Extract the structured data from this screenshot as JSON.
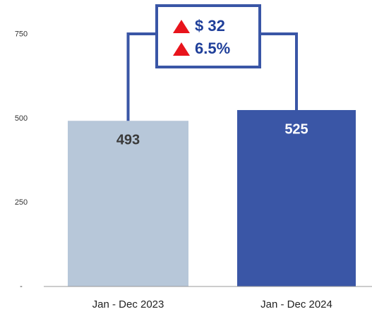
{
  "chart_data": {
    "type": "bar",
    "categories": [
      "Jan - Dec 2023",
      "Jan - Dec 2024"
    ],
    "values": [
      493,
      525
    ],
    "colors": [
      "#b7c7d9",
      "#3a56a6"
    ],
    "label_colors": [
      "#3a3a3a",
      "#ffffff"
    ],
    "ylim": [
      0,
      800
    ],
    "yticks": [
      {
        "value": 0,
        "label": "-"
      },
      250,
      500,
      750
    ],
    "annotations": [
      "$ 32",
      "6.5%"
    ],
    "annotation_color": "#1f3f9a",
    "annotation_marker_color": "#e8141c"
  }
}
